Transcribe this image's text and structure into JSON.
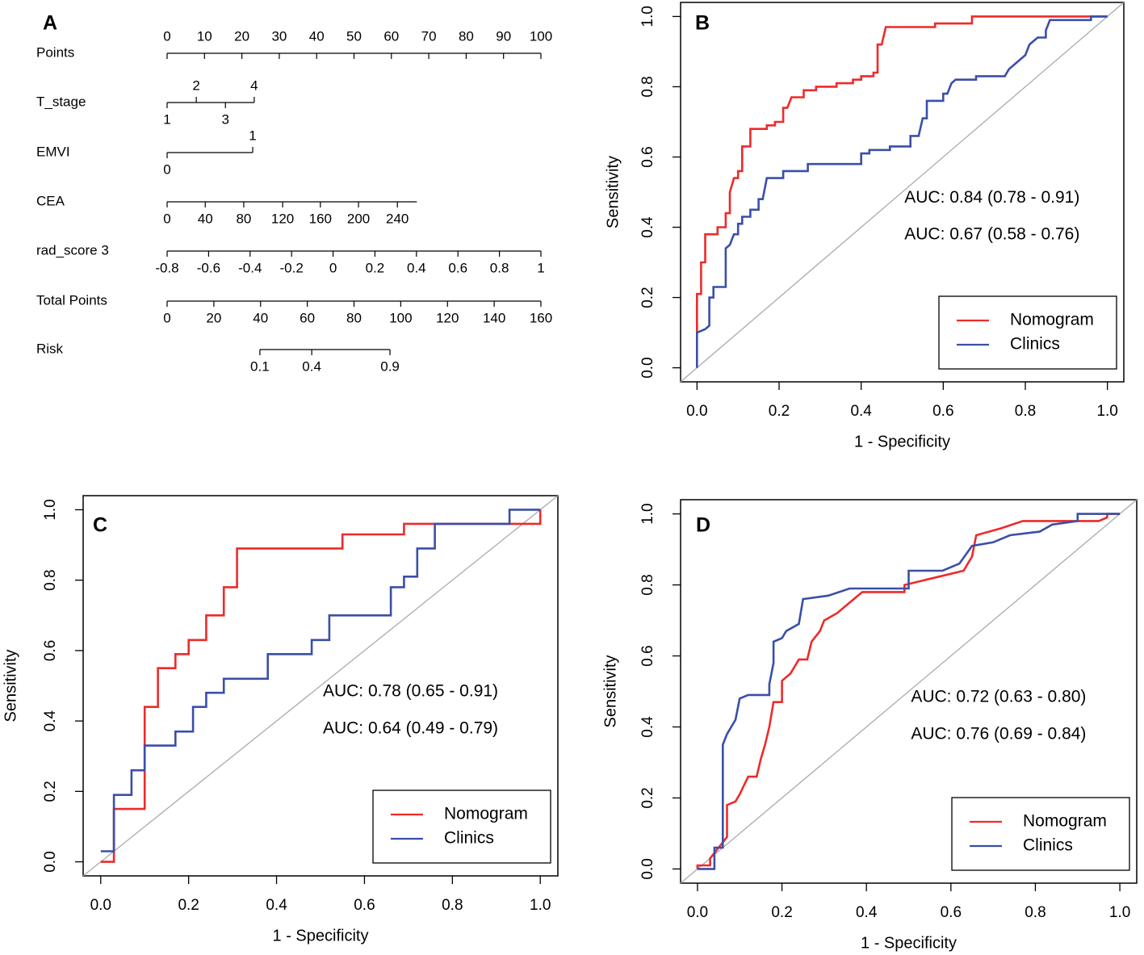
{
  "chart_data": [
    {
      "type": "nomogram",
      "panel_label": "A",
      "points_lim": [
        0,
        100
      ],
      "total_lim": [
        0,
        160
      ],
      "rows": [
        {
          "name": "Points",
          "scale": "points",
          "ticks": [
            0,
            10,
            20,
            30,
            40,
            50,
            60,
            70,
            80,
            90,
            100
          ]
        },
        {
          "name": "T_stage",
          "scale": "points",
          "ticks": [
            1,
            2,
            3,
            4
          ],
          "points": [
            0,
            7.8,
            15.6,
            23.3
          ]
        },
        {
          "name": "EMVI",
          "scale": "points",
          "ticks": [
            0,
            1
          ],
          "points": [
            0,
            22.9
          ]
        },
        {
          "name": "CEA",
          "scale": "points",
          "ticks": [
            0,
            40,
            80,
            120,
            160,
            200,
            240
          ],
          "points": [
            0,
            10.2,
            20.5,
            30.9,
            41.0,
            51.2,
            61.6
          ],
          "points_range": [
            0,
            66.8
          ]
        },
        {
          "name": "rad_score 3",
          "scale": "points",
          "ticks": [
            -0.8,
            -0.6,
            -0.4,
            -0.2,
            0,
            0.2,
            0.4,
            0.6,
            0.8,
            1
          ],
          "points": [
            0,
            11.1,
            22.2,
            33.3,
            44.4,
            55.6,
            66.7,
            77.8,
            88.9,
            100
          ]
        },
        {
          "name": "Total Points",
          "scale": "total",
          "ticks": [
            0,
            20,
            40,
            60,
            80,
            100,
            120,
            140,
            160
          ]
        },
        {
          "name": "Risk",
          "scale": "total",
          "ticks": [
            0.1,
            0.4,
            0.9
          ],
          "points": [
            39.7,
            61.9,
            95.4
          ]
        }
      ]
    },
    {
      "type": "line",
      "panel_label": "B",
      "xlabel": "1 - Specificity",
      "ylabel": "Sensitivity",
      "xlim": [
        -0.04,
        1.04
      ],
      "ylim": [
        -0.04,
        1.04
      ],
      "xticks": [
        {
          "value": 0,
          "label": "0.0"
        },
        0.2,
        0.4,
        0.6,
        0.8,
        {
          "value": 1,
          "label": "1.0"
        }
      ],
      "yticks": [
        {
          "value": 0,
          "label": "0.0"
        },
        0.2,
        0.4,
        0.6,
        0.8,
        {
          "value": 1,
          "label": "1.0"
        }
      ],
      "diagonal": true,
      "legend": "bottom-right",
      "annotations": [
        "AUC: 0.84 (0.78 - 0.91)",
        "AUC: 0.67 (0.58 - 0.76)"
      ],
      "series": [
        {
          "name": "Nomogram",
          "color": "#ee2a2a",
          "x": [
            0,
            0,
            0.01,
            0.01,
            0.02,
            0.02,
            0.05,
            0.05,
            0.07,
            0.07,
            0.08,
            0.08,
            0.09,
            0.1,
            0.1,
            0.11,
            0.11,
            0.13,
            0.13,
            0.17,
            0.17,
            0.19,
            0.19,
            0.21,
            0.21,
            0.22,
            0.23,
            0.26,
            0.26,
            0.29,
            0.29,
            0.34,
            0.34,
            0.38,
            0.38,
            0.4,
            0.4,
            0.43,
            0.43,
            0.44,
            0.44,
            0.45,
            0.46,
            0.58,
            0.58,
            0.67,
            0.67,
            1.0
          ],
          "values": [
            0.1,
            0.21,
            0.21,
            0.3,
            0.3,
            0.38,
            0.38,
            0.4,
            0.4,
            0.44,
            0.44,
            0.5,
            0.54,
            0.54,
            0.56,
            0.56,
            0.63,
            0.63,
            0.68,
            0.68,
            0.69,
            0.69,
            0.7,
            0.7,
            0.74,
            0.74,
            0.77,
            0.77,
            0.79,
            0.79,
            0.8,
            0.8,
            0.81,
            0.81,
            0.82,
            0.82,
            0.83,
            0.83,
            0.84,
            0.84,
            0.92,
            0.92,
            0.97,
            0.97,
            0.98,
            0.98,
            1.0,
            1.0
          ]
        },
        {
          "name": "Clinics",
          "color": "#3a4fa8",
          "x": [
            0,
            0,
            0.02,
            0.03,
            0.03,
            0.04,
            0.04,
            0.07,
            0.07,
            0.08,
            0.09,
            0.1,
            0.1,
            0.11,
            0.11,
            0.13,
            0.13,
            0.15,
            0.15,
            0.16,
            0.17,
            0.21,
            0.21,
            0.27,
            0.27,
            0.4,
            0.4,
            0.42,
            0.42,
            0.47,
            0.47,
            0.52,
            0.52,
            0.54,
            0.55,
            0.56,
            0.56,
            0.6,
            0.6,
            0.61,
            0.62,
            0.63,
            0.68,
            0.68,
            0.75,
            0.76,
            0.78,
            0.8,
            0.81,
            0.83,
            0.85,
            0.85,
            0.86,
            0.96,
            0.96,
            1.0
          ],
          "values": [
            0,
            0.1,
            0.11,
            0.12,
            0.2,
            0.2,
            0.23,
            0.23,
            0.34,
            0.35,
            0.38,
            0.38,
            0.41,
            0.41,
            0.43,
            0.43,
            0.45,
            0.45,
            0.48,
            0.48,
            0.54,
            0.54,
            0.56,
            0.56,
            0.58,
            0.58,
            0.61,
            0.61,
            0.62,
            0.62,
            0.63,
            0.63,
            0.66,
            0.66,
            0.71,
            0.71,
            0.76,
            0.76,
            0.78,
            0.78,
            0.81,
            0.82,
            0.82,
            0.83,
            0.83,
            0.85,
            0.87,
            0.89,
            0.92,
            0.94,
            0.94,
            0.96,
            0.99,
            0.99,
            1.0,
            1.0
          ]
        }
      ]
    },
    {
      "type": "line",
      "panel_label": "C",
      "xlabel": "1 - Specificity",
      "ylabel": "Sensitivity",
      "xlim": [
        -0.04,
        1.04
      ],
      "ylim": [
        -0.04,
        1.04
      ],
      "xticks": [
        {
          "value": 0,
          "label": "0.0"
        },
        0.2,
        0.4,
        0.6,
        0.8,
        {
          "value": 1,
          "label": "1.0"
        }
      ],
      "yticks": [
        {
          "value": 0,
          "label": "0.0"
        },
        0.2,
        0.4,
        0.6,
        0.8,
        {
          "value": 1,
          "label": "1.0"
        }
      ],
      "diagonal": true,
      "legend": "bottom-right",
      "annotations": [
        "AUC: 0.78 (0.65 - 0.91)",
        "AUC: 0.64 (0.49 - 0.79)"
      ],
      "series": [
        {
          "name": "Nomogram",
          "color": "#ee2a2a",
          "x": [
            0,
            0.03,
            0.03,
            0.1,
            0.1,
            0.13,
            0.13,
            0.17,
            0.17,
            0.2,
            0.2,
            0.24,
            0.24,
            0.28,
            0.28,
            0.31,
            0.31,
            0.55,
            0.55,
            0.69,
            0.69,
            1.0,
            1.0
          ],
          "values": [
            0,
            0,
            0.15,
            0.15,
            0.44,
            0.44,
            0.55,
            0.55,
            0.59,
            0.59,
            0.63,
            0.63,
            0.7,
            0.7,
            0.78,
            0.78,
            0.89,
            0.89,
            0.93,
            0.93,
            0.96,
            0.96,
            1.0
          ]
        },
        {
          "name": "Clinics",
          "color": "#3a4fa8",
          "x": [
            0,
            0.03,
            0.03,
            0.07,
            0.07,
            0.1,
            0.1,
            0.17,
            0.17,
            0.21,
            0.21,
            0.24,
            0.24,
            0.28,
            0.28,
            0.38,
            0.38,
            0.48,
            0.48,
            0.52,
            0.52,
            0.66,
            0.66,
            0.69,
            0.69,
            0.72,
            0.72,
            0.76,
            0.76,
            0.93,
            0.93,
            1.0
          ],
          "values": [
            0.03,
            0.03,
            0.19,
            0.19,
            0.26,
            0.26,
            0.33,
            0.33,
            0.37,
            0.37,
            0.44,
            0.44,
            0.48,
            0.48,
            0.52,
            0.52,
            0.59,
            0.59,
            0.63,
            0.63,
            0.7,
            0.7,
            0.78,
            0.78,
            0.81,
            0.81,
            0.89,
            0.89,
            0.96,
            0.96,
            1.0,
            1.0
          ]
        }
      ]
    },
    {
      "type": "line",
      "panel_label": "D",
      "xlabel": "1 - Specificity",
      "ylabel": "Sensitivity",
      "xlim": [
        -0.04,
        1.04
      ],
      "ylim": [
        -0.04,
        1.04
      ],
      "xticks": [
        {
          "value": 0,
          "label": "0.0"
        },
        0.2,
        0.4,
        0.6,
        0.8,
        {
          "value": 1,
          "label": "1.0"
        }
      ],
      "yticks": [
        {
          "value": 0,
          "label": "0.0"
        },
        0.2,
        0.4,
        0.6,
        0.8,
        {
          "value": 1,
          "label": "1.0"
        }
      ],
      "diagonal": true,
      "legend": "bottom-right",
      "annotations": [
        "AUC: 0.72 (0.63 - 0.80)",
        "AUC: 0.76 (0.69 - 0.84)"
      ],
      "series": [
        {
          "name": "Nomogram",
          "color": "#ee2a2a",
          "x": [
            0,
            0,
            0.03,
            0.03,
            0.05,
            0.07,
            0.07,
            0.09,
            0.1,
            0.12,
            0.14,
            0.15,
            0.16,
            0.17,
            0.18,
            0.2,
            0.2,
            0.22,
            0.24,
            0.26,
            0.27,
            0.29,
            0.3,
            0.33,
            0.36,
            0.39,
            0.49,
            0.49,
            0.56,
            0.63,
            0.65,
            0.66,
            0.72,
            0.77,
            0.95,
            0.97,
            0.97,
            1.0
          ],
          "values": [
            0,
            0.01,
            0.01,
            0.03,
            0.06,
            0.09,
            0.18,
            0.19,
            0.21,
            0.26,
            0.26,
            0.31,
            0.35,
            0.4,
            0.47,
            0.47,
            0.53,
            0.55,
            0.59,
            0.59,
            0.64,
            0.67,
            0.7,
            0.72,
            0.75,
            0.78,
            0.78,
            0.8,
            0.82,
            0.84,
            0.88,
            0.94,
            0.96,
            0.98,
            0.98,
            0.99,
            1.0,
            1.0
          ]
        },
        {
          "name": "Clinics",
          "color": "#3a4fa8",
          "x": [
            0,
            0.04,
            0.04,
            0.06,
            0.06,
            0.07,
            0.09,
            0.1,
            0.12,
            0.17,
            0.17,
            0.18,
            0.18,
            0.2,
            0.21,
            0.24,
            0.25,
            0.31,
            0.36,
            0.5,
            0.5,
            0.58,
            0.62,
            0.65,
            0.7,
            0.74,
            0.81,
            0.84,
            0.9,
            0.9,
            1.0
          ],
          "values": [
            0,
            0,
            0.06,
            0.06,
            0.35,
            0.38,
            0.42,
            0.48,
            0.49,
            0.49,
            0.52,
            0.58,
            0.64,
            0.65,
            0.67,
            0.69,
            0.76,
            0.77,
            0.79,
            0.79,
            0.84,
            0.84,
            0.86,
            0.91,
            0.92,
            0.94,
            0.95,
            0.97,
            0.98,
            1.0,
            1.0
          ]
        }
      ]
    }
  ]
}
